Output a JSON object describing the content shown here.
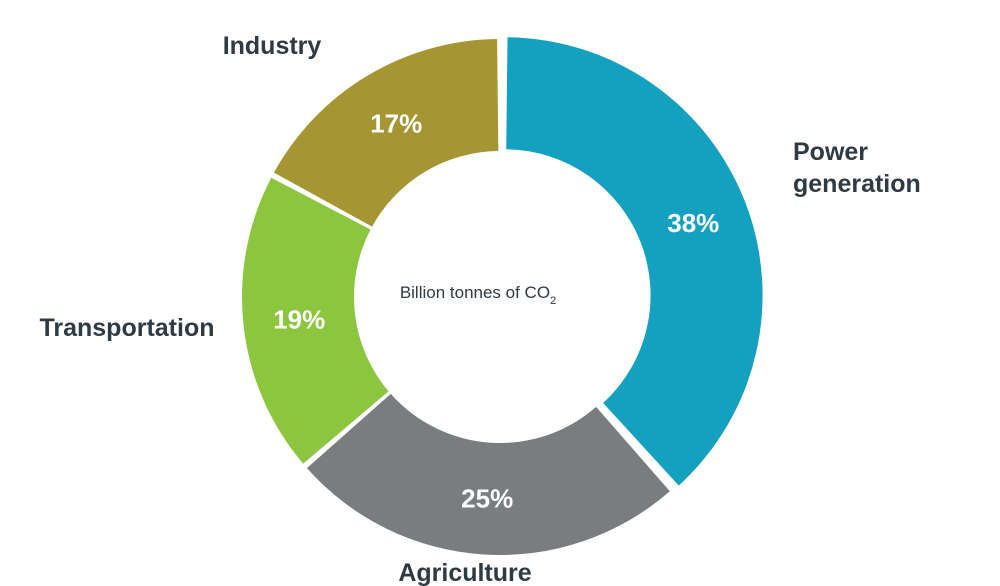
{
  "chart_data": {
    "type": "pie",
    "variant": "donut",
    "categories": [
      "Power generation",
      "Agriculture",
      "Transportation",
      "Industry"
    ],
    "values": [
      38,
      25,
      19,
      17
    ],
    "value_labels": [
      "38%",
      "25%",
      "19%",
      "17%"
    ],
    "colors": [
      "#14a1bf",
      "#7a7d80",
      "#8cc63f",
      "#a69633"
    ],
    "exploded": [
      "Power generation"
    ],
    "center_text": "Billion tonnes of CO",
    "center_subscript": "2",
    "legend": "none"
  }
}
